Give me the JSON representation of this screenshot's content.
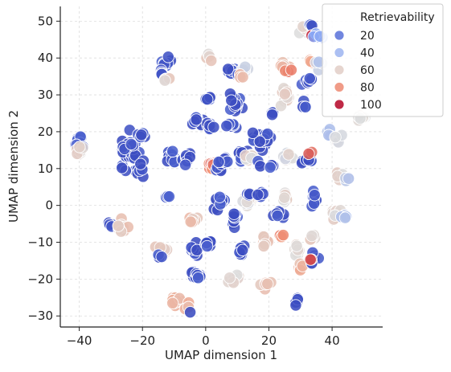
{
  "chart_data": {
    "type": "scatter",
    "xlabel": "UMAP dimension 1",
    "ylabel": "UMAP dimension 2",
    "xlim": [
      -46,
      56
    ],
    "ylim": [
      -33,
      54
    ],
    "x_ticks": [
      -40,
      -20,
      0,
      20,
      40
    ],
    "y_ticks": [
      -30,
      -20,
      -10,
      0,
      10,
      20,
      30,
      40,
      50
    ],
    "x_tick_labels": [
      "−40",
      "−20",
      "0",
      "20",
      "40"
    ],
    "y_tick_labels": [
      "−30",
      "−20",
      "−10",
      "0",
      "10",
      "20",
      "30",
      "40",
      "50"
    ],
    "grid": true,
    "legend": {
      "title": "Retrievability",
      "placement": "top-right",
      "entries": [
        {
          "label": "20",
          "value": 20
        },
        {
          "label": "40",
          "value": 40
        },
        {
          "label": "60",
          "value": 60
        },
        {
          "label": "80",
          "value": 80
        },
        {
          "label": "100",
          "value": 100
        }
      ]
    },
    "colormap": "coolwarm",
    "color_range": [
      10,
      100
    ],
    "clusters": [
      {
        "x": -40,
        "y": 16,
        "spread_x": 1.4,
        "spread_y": 2.2,
        "n": 20,
        "value": 15
      },
      {
        "x": -40,
        "y": 15,
        "spread_x": 1.4,
        "spread_y": 1.6,
        "n": 8,
        "value": 58
      },
      {
        "x": -30,
        "y": -5,
        "spread_x": 1.2,
        "spread_y": 1.0,
        "n": 6,
        "value": 12
      },
      {
        "x": -27,
        "y": -6,
        "spread_x": 1.8,
        "spread_y": 1.4,
        "n": 12,
        "value": 62
      },
      {
        "x": -24,
        "y": 14,
        "spread_x": 2.5,
        "spread_y": 4.5,
        "n": 28,
        "value": 12
      },
      {
        "x": -21,
        "y": 19,
        "spread_x": 1.3,
        "spread_y": 1.0,
        "n": 5,
        "value": 12
      },
      {
        "x": -21,
        "y": 10,
        "spread_x": 1.4,
        "spread_y": 2.0,
        "n": 8,
        "value": 12
      },
      {
        "x": -14,
        "y": -12,
        "spread_x": 1.6,
        "spread_y": 1.4,
        "n": 10,
        "value": 62
      },
      {
        "x": -15,
        "y": -14,
        "spread_x": 0.8,
        "spread_y": 0.6,
        "n": 3,
        "value": 12
      },
      {
        "x": -12,
        "y": 39,
        "spread_x": 1.5,
        "spread_y": 1.8,
        "n": 10,
        "value": 12
      },
      {
        "x": -14,
        "y": 36,
        "spread_x": 1.0,
        "spread_y": 1.0,
        "n": 4,
        "value": 12
      },
      {
        "x": -12,
        "y": 34,
        "spread_x": 1.2,
        "spread_y": 0.8,
        "n": 5,
        "value": 60
      },
      {
        "x": -12,
        "y": 2.5,
        "spread_x": 1.0,
        "spread_y": 0.8,
        "n": 5,
        "value": 12
      },
      {
        "x": -11,
        "y": 13,
        "spread_x": 1.8,
        "spread_y": 1.8,
        "n": 12,
        "value": 12
      },
      {
        "x": -9,
        "y": -26,
        "spread_x": 2.2,
        "spread_y": 1.6,
        "n": 14,
        "value": 68
      },
      {
        "x": -6,
        "y": -27,
        "spread_x": 1.0,
        "spread_y": 1.2,
        "n": 4,
        "value": 68
      },
      {
        "x": -5,
        "y": -29,
        "spread_x": 0.4,
        "spread_y": 0.4,
        "n": 1,
        "value": 12
      },
      {
        "x": -6,
        "y": 13,
        "spread_x": 1.8,
        "spread_y": 1.8,
        "n": 12,
        "value": 12
      },
      {
        "x": -4,
        "y": -4,
        "spread_x": 1.2,
        "spread_y": 0.9,
        "n": 6,
        "value": 65
      },
      {
        "x": -3,
        "y": 22.5,
        "spread_x": 1.6,
        "spread_y": 1.2,
        "n": 10,
        "value": 12
      },
      {
        "x": -4,
        "y": -12,
        "spread_x": 1.5,
        "spread_y": 1.5,
        "n": 10,
        "value": 12
      },
      {
        "x": -3,
        "y": -19,
        "spread_x": 1.5,
        "spread_y": 1.2,
        "n": 10,
        "value": 12
      },
      {
        "x": 1,
        "y": 29,
        "spread_x": 1.0,
        "spread_y": 0.9,
        "n": 5,
        "value": 12
      },
      {
        "x": 1.5,
        "y": 22,
        "spread_x": 1.2,
        "spread_y": 1.5,
        "n": 8,
        "value": 12
      },
      {
        "x": 2,
        "y": 11,
        "spread_x": 1.4,
        "spread_y": 0.7,
        "n": 8,
        "value": 82
      },
      {
        "x": 1,
        "y": 40.5,
        "spread_x": 1.0,
        "spread_y": 0.6,
        "n": 4,
        "value": 60
      },
      {
        "x": 1,
        "y": -10,
        "spread_x": 1.2,
        "spread_y": 1.5,
        "n": 8,
        "value": 12
      },
      {
        "x": 4,
        "y": 10,
        "spread_x": 1.3,
        "spread_y": 1.0,
        "n": 6,
        "value": 12
      },
      {
        "x": 4,
        "y": 1,
        "spread_x": 1.8,
        "spread_y": 1.8,
        "n": 12,
        "value": 12
      },
      {
        "x": 6,
        "y": 12,
        "spread_x": 1.6,
        "spread_y": 1.2,
        "n": 8,
        "value": 12
      },
      {
        "x": 8,
        "y": 21.5,
        "spread_x": 1.1,
        "spread_y": 1.0,
        "n": 6,
        "value": 12
      },
      {
        "x": 8,
        "y": 36,
        "spread_x": 1.6,
        "spread_y": 1.6,
        "n": 8,
        "value": 12
      },
      {
        "x": 9,
        "y": 28,
        "spread_x": 1.8,
        "spread_y": 2.5,
        "n": 14,
        "value": 12
      },
      {
        "x": 9,
        "y": -20,
        "spread_x": 1.6,
        "spread_y": 1.2,
        "n": 10,
        "value": 58
      },
      {
        "x": 9,
        "y": -4,
        "spread_x": 1.3,
        "spread_y": 1.5,
        "n": 8,
        "value": 12
      },
      {
        "x": 12,
        "y": 37,
        "spread_x": 1.6,
        "spread_y": 0.9,
        "n": 7,
        "value": 50
      },
      {
        "x": 11,
        "y": 35,
        "spread_x": 0.8,
        "spread_y": 0.6,
        "n": 3,
        "value": 68
      },
      {
        "x": 11,
        "y": -13,
        "spread_x": 1.3,
        "spread_y": 1.6,
        "n": 9,
        "value": 12
      },
      {
        "x": 11,
        "y": 14,
        "spread_x": 1.4,
        "spread_y": 1.4,
        "n": 8,
        "value": 12
      },
      {
        "x": 14,
        "y": 13,
        "spread_x": 1.4,
        "spread_y": 1.2,
        "n": 8,
        "value": 58
      },
      {
        "x": 13,
        "y": 1,
        "spread_x": 1.6,
        "spread_y": 1.6,
        "n": 10,
        "value": 55
      },
      {
        "x": 13,
        "y": 3,
        "spread_x": 0.8,
        "spread_y": 0.8,
        "n": 3,
        "value": 12
      },
      {
        "x": 17,
        "y": 18,
        "spread_x": 2.5,
        "spread_y": 2.6,
        "n": 18,
        "value": 12
      },
      {
        "x": 17,
        "y": 11,
        "spread_x": 0.9,
        "spread_y": 0.8,
        "n": 4,
        "value": 12
      },
      {
        "x": 18,
        "y": 3,
        "spread_x": 1.2,
        "spread_y": 1.0,
        "n": 5,
        "value": 12
      },
      {
        "x": 19,
        "y": -10,
        "spread_x": 1.5,
        "spread_y": 1.8,
        "n": 10,
        "value": 65
      },
      {
        "x": 19,
        "y": -21,
        "spread_x": 1.2,
        "spread_y": 1.0,
        "n": 6,
        "value": 66
      },
      {
        "x": 21,
        "y": 25.5,
        "spread_x": 1.0,
        "spread_y": 0.7,
        "n": 4,
        "value": 12
      },
      {
        "x": 21,
        "y": 11,
        "spread_x": 1.0,
        "spread_y": 1.0,
        "n": 4,
        "value": 12
      },
      {
        "x": 23,
        "y": -3,
        "spread_x": 1.4,
        "spread_y": 1.2,
        "n": 7,
        "value": 12
      },
      {
        "x": 24,
        "y": -8,
        "spread_x": 1.0,
        "spread_y": 0.8,
        "n": 4,
        "value": 78
      },
      {
        "x": 25,
        "y": 38,
        "spread_x": 1.6,
        "spread_y": 1.0,
        "n": 8,
        "value": 65
      },
      {
        "x": 25,
        "y": 30,
        "spread_x": 1.8,
        "spread_y": 1.8,
        "n": 10,
        "value": 58
      },
      {
        "x": 26,
        "y": 13,
        "spread_x": 2.2,
        "spread_y": 1.6,
        "n": 12,
        "value": 55
      },
      {
        "x": 25,
        "y": 2,
        "spread_x": 1.6,
        "spread_y": 1.4,
        "n": 8,
        "value": 58
      },
      {
        "x": 26,
        "y": 36.5,
        "spread_x": 1.2,
        "spread_y": 0.6,
        "n": 4,
        "value": 82
      },
      {
        "x": 29,
        "y": -12,
        "spread_x": 1.6,
        "spread_y": 1.6,
        "n": 10,
        "value": 58
      },
      {
        "x": 30,
        "y": -17,
        "spread_x": 1.2,
        "spread_y": 1.4,
        "n": 6,
        "value": 68
      },
      {
        "x": 29,
        "y": -26,
        "spread_x": 0.9,
        "spread_y": 0.8,
        "n": 5,
        "value": 12
      },
      {
        "x": 31,
        "y": 27,
        "spread_x": 1.0,
        "spread_y": 0.9,
        "n": 4,
        "value": 12
      },
      {
        "x": 32,
        "y": 33,
        "spread_x": 1.4,
        "spread_y": 1.6,
        "n": 8,
        "value": 12
      },
      {
        "x": 31,
        "y": 47,
        "spread_x": 1.4,
        "spread_y": 1.5,
        "n": 8,
        "value": 58
      },
      {
        "x": 33,
        "y": 49,
        "spread_x": 1.0,
        "spread_y": 0.4,
        "n": 3,
        "value": 12
      },
      {
        "x": 34,
        "y": 46,
        "spread_x": 0.8,
        "spread_y": 0.5,
        "n": 3,
        "value": 98
      },
      {
        "x": 33,
        "y": 39,
        "spread_x": 1.2,
        "spread_y": 1.0,
        "n": 5,
        "value": 72
      },
      {
        "x": 32,
        "y": 12,
        "spread_x": 1.5,
        "spread_y": 1.4,
        "n": 8,
        "value": 12
      },
      {
        "x": 33,
        "y": 14,
        "spread_x": 0.8,
        "spread_y": 0.6,
        "n": 2,
        "value": 85
      },
      {
        "x": 34,
        "y": 2,
        "spread_x": 1.0,
        "spread_y": 2.0,
        "n": 8,
        "value": 12
      },
      {
        "x": 34,
        "y": -14,
        "spread_x": 1.2,
        "spread_y": 1.5,
        "n": 7,
        "value": 12
      },
      {
        "x": 33,
        "y": -14.5,
        "spread_x": 0.5,
        "spread_y": 0.4,
        "n": 2,
        "value": 92
      },
      {
        "x": 36,
        "y": 46,
        "spread_x": 1.4,
        "spread_y": 1.2,
        "n": 5,
        "value": 38
      },
      {
        "x": 36,
        "y": 38,
        "spread_x": 1.2,
        "spread_y": 1.2,
        "n": 5,
        "value": 48
      },
      {
        "x": 34,
        "y": -9,
        "spread_x": 1.2,
        "spread_y": 1.2,
        "n": 5,
        "value": 60
      },
      {
        "x": 39,
        "y": 20,
        "spread_x": 0.8,
        "spread_y": 0.8,
        "n": 4,
        "value": 45
      },
      {
        "x": 42,
        "y": 18,
        "spread_x": 1.4,
        "spread_y": 1.3,
        "n": 8,
        "value": 55
      },
      {
        "x": 42,
        "y": 8,
        "spread_x": 1.4,
        "spread_y": 1.0,
        "n": 8,
        "value": 58
      },
      {
        "x": 45,
        "y": 7.5,
        "spread_x": 1.2,
        "spread_y": 0.9,
        "n": 5,
        "value": 48
      },
      {
        "x": 41,
        "y": -2,
        "spread_x": 1.6,
        "spread_y": 1.5,
        "n": 10,
        "value": 58
      },
      {
        "x": 44,
        "y": -3,
        "spread_x": 0.8,
        "spread_y": 0.8,
        "n": 4,
        "value": 45
      },
      {
        "x": 49,
        "y": 24,
        "spread_x": 1.8,
        "spread_y": 0.9,
        "n": 7,
        "value": 58
      }
    ]
  }
}
